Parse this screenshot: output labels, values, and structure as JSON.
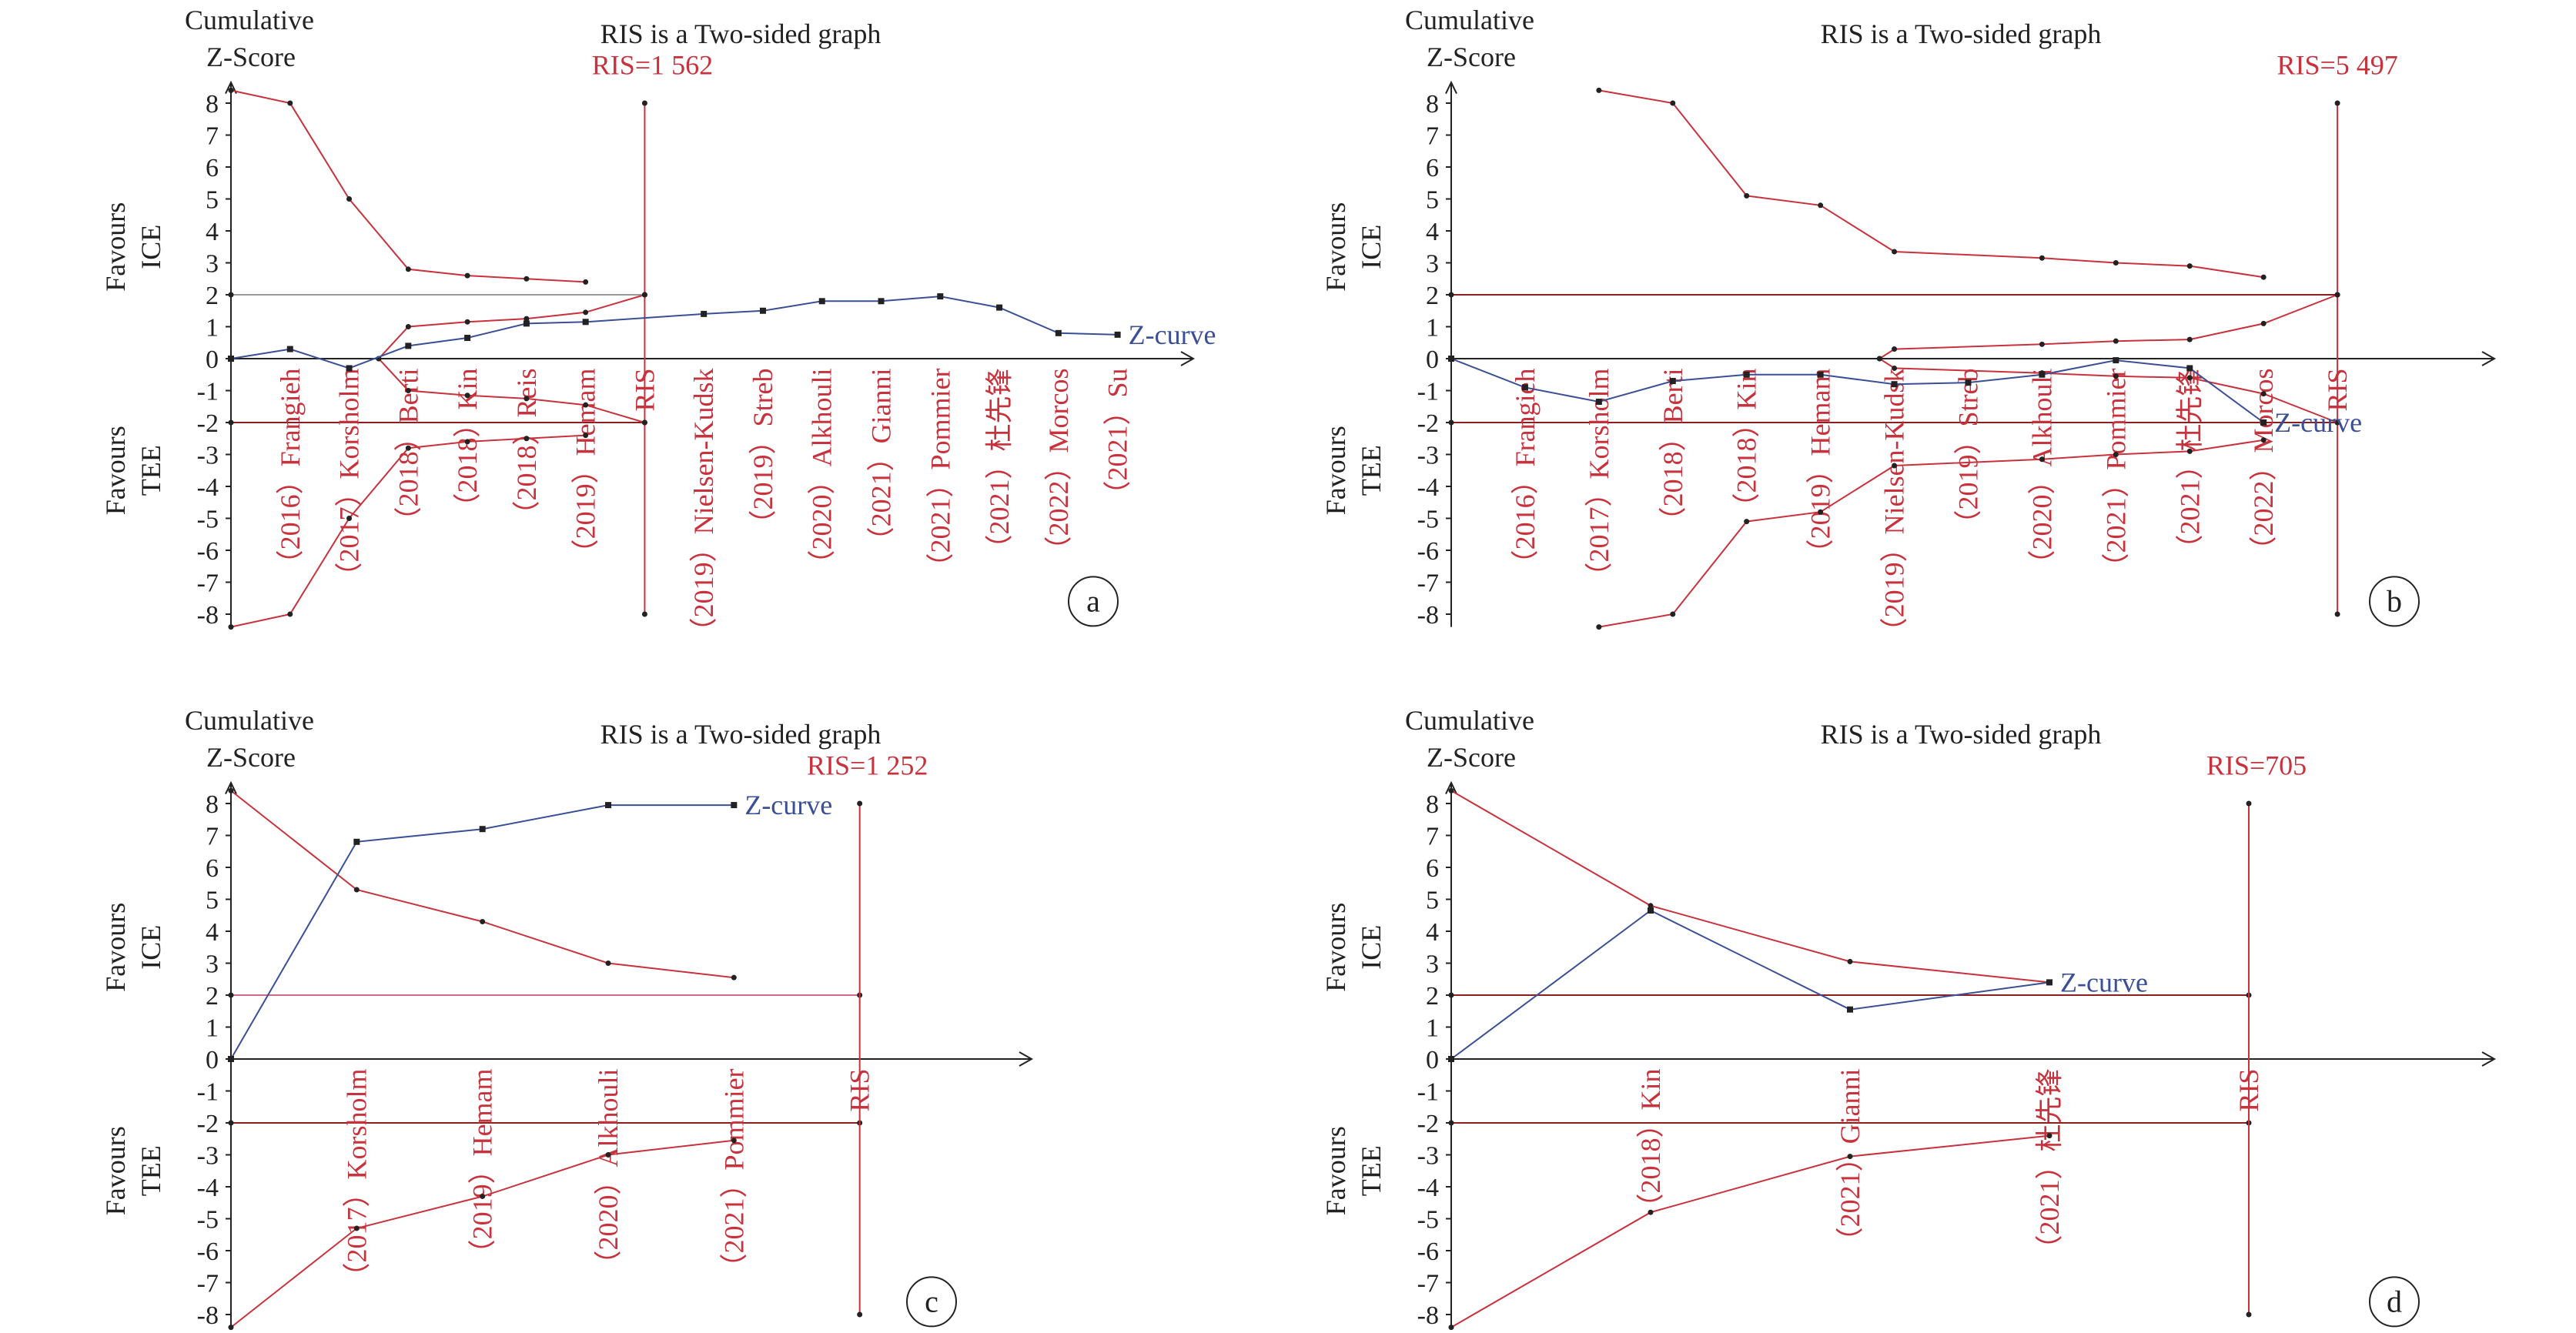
{
  "colors": {
    "red": "#c8323c",
    "blue": "#3a4f96",
    "black": "#222222",
    "gray": "#9a9a9a",
    "maroon": "#8b1e1e"
  },
  "chart_data": [
    {
      "panel": "a",
      "type": "line",
      "title": "RIS is a Two-sided graph",
      "ylabel_line1": "Cumulative",
      "ylabel_line2": "Z-Score",
      "favours_top_1": "Favours",
      "favours_top_2": "ICE",
      "favours_bottom_1": "Favours",
      "favours_bottom_2": "TEE",
      "ris_label": "RIS=1 562",
      "ris_tick": "RIS",
      "z_label": "Z-curve",
      "ylim": [
        -8,
        8
      ],
      "yticks": [
        "8",
        "7",
        "6",
        "5",
        "4",
        "3",
        "2",
        "1",
        "0",
        "-1",
        "-2",
        "-3",
        "-4",
        "-5",
        "-6",
        "-7",
        "-8"
      ],
      "xmax": 15.5,
      "studies": [
        "（2016）Frangieh",
        "（2017）Korsholm",
        "（2018）Berti",
        "（2018）Kin",
        "（2018）Reis",
        "（2019）Hemam",
        "（2019）Nielsen-Kudsk",
        "（2019）Streb",
        "（2020）Alkhouli",
        "（2021）Gianni",
        "（2021）Pommier",
        "（2021）杜先锋",
        "（2022）Morcos",
        "（2021）Su"
      ],
      "study_x": [
        1,
        2,
        3,
        4,
        5,
        6,
        8,
        9,
        10,
        11,
        12,
        13,
        14,
        15
      ],
      "ris_x": 7,
      "upper_boundary": [
        [
          0,
          8.4
        ],
        [
          1,
          8
        ],
        [
          2,
          5
        ],
        [
          3,
          2.8
        ],
        [
          4,
          2.6
        ],
        [
          5,
          2.5
        ],
        [
          6,
          2.4
        ]
      ],
      "lower_boundary": [
        [
          0,
          -8.4
        ],
        [
          1,
          -8
        ],
        [
          2,
          -5
        ],
        [
          3,
          -2.8
        ],
        [
          4,
          -2.6
        ],
        [
          5,
          -2.5
        ],
        [
          6,
          -2.4
        ]
      ],
      "upper_futility": [
        [
          2.5,
          0
        ],
        [
          3,
          1
        ],
        [
          4,
          1.15
        ],
        [
          5,
          1.25
        ],
        [
          6,
          1.45
        ],
        [
          7,
          2
        ]
      ],
      "lower_futility": [
        [
          2.5,
          0
        ],
        [
          3,
          -1
        ],
        [
          4,
          -1.15
        ],
        [
          5,
          -1.25
        ],
        [
          6,
          -1.45
        ],
        [
          7,
          -2
        ]
      ],
      "z_curve": [
        [
          0,
          0
        ],
        [
          1,
          0.3
        ],
        [
          2,
          -0.3
        ],
        [
          3,
          0.4
        ],
        [
          4,
          0.65
        ],
        [
          5,
          1.1
        ],
        [
          6,
          1.15
        ],
        [
          8,
          1.4
        ],
        [
          9,
          1.5
        ],
        [
          10,
          1.8
        ],
        [
          11,
          1.8
        ],
        [
          12,
          1.95
        ],
        [
          13,
          1.6
        ],
        [
          14,
          0.8
        ],
        [
          15,
          0.75
        ]
      ],
      "tag": "a"
    },
    {
      "panel": "b",
      "type": "line",
      "title": "RIS is a Two-sided graph",
      "ylabel_line1": "Cumulative",
      "ylabel_line2": "Z-Score",
      "favours_top_1": "Favours",
      "favours_top_2": "ICE",
      "favours_bottom_1": "Favours",
      "favours_bottom_2": "TEE",
      "ris_label": "RIS=5 497",
      "ris_tick": "RIS",
      "z_label": "Z-curve",
      "ylim": [
        -8,
        8
      ],
      "yticks": [
        "8",
        "7",
        "6",
        "5",
        "4",
        "3",
        "2",
        "1",
        "0",
        "-1",
        "-2",
        "-3",
        "-4",
        "-5",
        "-6",
        "-7",
        "-8"
      ],
      "xmax": 13.5,
      "studies": [
        "（2016）Frangieh",
        "（2017）Korsholm",
        "（2018）Berti",
        "（2018）Kin",
        "（2019）Hemam",
        "（2019）Nielsen-Kudsk",
        "（2019）Streb",
        "（2020）Alkhouli",
        "（2021）Pommier",
        "（2021）杜先锋",
        "（2022）Morcos"
      ],
      "study_x": [
        1,
        2,
        3,
        4,
        5,
        6,
        7,
        8,
        9,
        10,
        11
      ],
      "ris_x": 12,
      "upper_boundary": [
        [
          2,
          8.4
        ],
        [
          3,
          8
        ],
        [
          4,
          5.1
        ],
        [
          5,
          4.8
        ],
        [
          6,
          3.35
        ],
        [
          8,
          3.15
        ],
        [
          9,
          3.0
        ],
        [
          10,
          2.9
        ],
        [
          11,
          2.55
        ]
      ],
      "lower_boundary": [
        [
          2,
          -8.4
        ],
        [
          3,
          -8
        ],
        [
          4,
          -5.1
        ],
        [
          5,
          -4.8
        ],
        [
          6,
          -3.35
        ],
        [
          8,
          -3.15
        ],
        [
          9,
          -3.0
        ],
        [
          10,
          -2.9
        ],
        [
          11,
          -2.55
        ]
      ],
      "upper_futility": [
        [
          5.8,
          0
        ],
        [
          6,
          0.3
        ],
        [
          8,
          0.45
        ],
        [
          9,
          0.55
        ],
        [
          10,
          0.6
        ],
        [
          11,
          1.1
        ],
        [
          12,
          2
        ]
      ],
      "lower_futility": [
        [
          5.8,
          0
        ],
        [
          6,
          -0.3
        ],
        [
          8,
          -0.45
        ],
        [
          9,
          -0.55
        ],
        [
          10,
          -0.6
        ],
        [
          11,
          -1.1
        ],
        [
          12,
          -2
        ]
      ],
      "z_curve": [
        [
          0,
          0
        ],
        [
          1,
          -0.9
        ],
        [
          2,
          -1.35
        ],
        [
          3,
          -0.7
        ],
        [
          4,
          -0.5
        ],
        [
          5,
          -0.5
        ],
        [
          6,
          -0.8
        ],
        [
          7,
          -0.75
        ],
        [
          8,
          -0.5
        ],
        [
          9,
          -0.05
        ],
        [
          10,
          -0.3
        ],
        [
          11,
          -2.0
        ]
      ],
      "tag": "b"
    },
    {
      "panel": "c",
      "type": "line",
      "title": "RIS is a Two-sided graph",
      "ylabel_line1": "Cumulative",
      "ylabel_line2": "Z-Score",
      "favours_top_1": "Favours",
      "favours_top_2": "ICE",
      "favours_bottom_1": "Favours",
      "favours_bottom_2": "TEE",
      "ris_label": "RIS=1 252",
      "ris_tick": "RIS",
      "z_label": "Z-curve",
      "ylim": [
        -8,
        8
      ],
      "yticks": [
        "8",
        "7",
        "6",
        "5",
        "4",
        "3",
        "2",
        "1",
        "0",
        "-1",
        "-2",
        "-3",
        "-4",
        "-5",
        "-6",
        "-7",
        "-8"
      ],
      "xmax": 6,
      "studies": [
        "（2017）Korsholm",
        "（2019）Hemam",
        "（2020）Alkhouli",
        "（2021）Pommier"
      ],
      "study_x": [
        1,
        2,
        3,
        4
      ],
      "ris_x": 5,
      "upper_boundary": [
        [
          0,
          8.4
        ],
        [
          1,
          5.3
        ],
        [
          2,
          4.3
        ],
        [
          3,
          3.0
        ],
        [
          4,
          2.55
        ]
      ],
      "lower_boundary": [
        [
          0,
          -8.4
        ],
        [
          1,
          -5.3
        ],
        [
          2,
          -4.3
        ],
        [
          3,
          -3.0
        ],
        [
          4,
          -2.55
        ]
      ],
      "upper_futility": [],
      "lower_futility": [],
      "z_curve": [
        [
          0,
          0
        ],
        [
          1,
          6.8
        ],
        [
          2,
          7.2
        ],
        [
          3,
          7.95
        ],
        [
          4,
          7.95
        ]
      ],
      "tag": "c"
    },
    {
      "panel": "d",
      "type": "line",
      "title": "RIS is a Two-sided graph",
      "ylabel_line1": "Cumulative",
      "ylabel_line2": "Z-Score",
      "favours_top_1": "Favours",
      "favours_top_2": "ICE",
      "favours_bottom_1": "Favours",
      "favours_bottom_2": "TEE",
      "ris_label": "RIS=705",
      "ris_tick": "RIS",
      "z_label": "Z-curve",
      "ylim": [
        -8,
        8
      ],
      "yticks": [
        "8",
        "7",
        "6",
        "5",
        "4",
        "3",
        "2",
        "1",
        "0",
        "-1",
        "-2",
        "-3",
        "-4",
        "-5",
        "-6",
        "-7",
        "-8"
      ],
      "xmax": 5,
      "studies": [
        "（2018）Kin",
        "（2021）Gianni",
        "（2021）杜先锋"
      ],
      "study_x": [
        1,
        2,
        3
      ],
      "ris_x": 4,
      "upper_boundary": [
        [
          0,
          8.4
        ],
        [
          1,
          4.8
        ],
        [
          2,
          3.05
        ],
        [
          3,
          2.4
        ]
      ],
      "lower_boundary": [
        [
          0,
          -8.4
        ],
        [
          1,
          -4.8
        ],
        [
          2,
          -3.05
        ],
        [
          3,
          -2.4
        ]
      ],
      "upper_futility": [],
      "lower_futility": [],
      "z_curve": [
        [
          0,
          0
        ],
        [
          1,
          4.65
        ],
        [
          2,
          1.55
        ],
        [
          3,
          2.4
        ]
      ],
      "tag": "d"
    }
  ]
}
